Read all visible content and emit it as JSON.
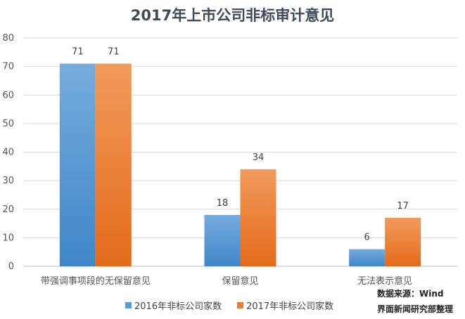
{
  "chart_data": {
    "type": "bar",
    "title": "2017年上市公司非标审计意见",
    "categories": [
      "带强调事项段的无保留意见",
      "保留意见",
      "无法表示意见"
    ],
    "series": [
      {
        "name": "2016年非标公司家数",
        "values": [
          71,
          18,
          6
        ],
        "color": "#5b9bd5"
      },
      {
        "name": "2017年非标公司家数",
        "values": [
          71,
          34,
          17
        ],
        "color": "#ed7d31"
      }
    ],
    "xlabel": "",
    "ylabel": "",
    "ylim": [
      0,
      80
    ],
    "yticks": [
      0,
      10,
      20,
      30,
      40,
      50,
      60,
      70,
      80
    ],
    "grid": true,
    "legend": "bottom"
  },
  "source": {
    "line1": "数据来源：Wind",
    "line2": "界面新闻研究部整理"
  }
}
